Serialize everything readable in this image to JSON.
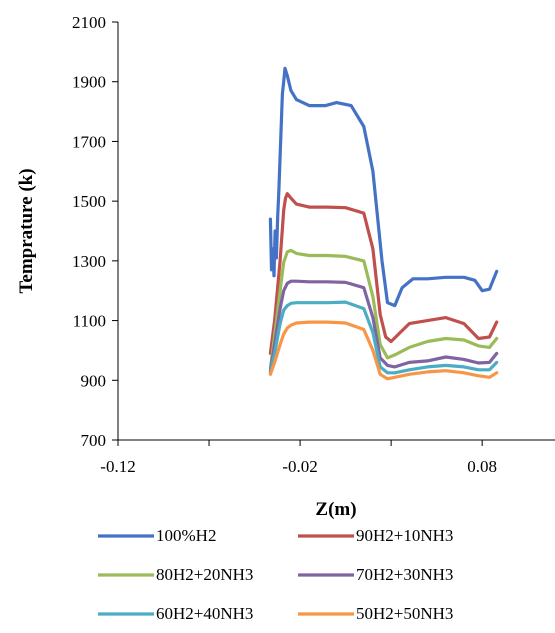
{
  "chart_data": {
    "type": "line",
    "title": "",
    "xlabel": "Z(m)",
    "ylabel": "Temprature (k)",
    "xlim": [
      -0.12,
      0.12
    ],
    "ylim": [
      700,
      2100
    ],
    "xticks": [
      -0.12,
      -0.02,
      0.08
    ],
    "xtick_labels": [
      "-0.12",
      "-0.02",
      "0.08"
    ],
    "yticks": [
      700,
      900,
      1100,
      1300,
      1500,
      1700,
      1900,
      2100
    ],
    "ytick_labels": [
      "700",
      "900",
      "1100",
      "1300",
      "1500",
      "1700",
      "1900",
      "2100"
    ],
    "grid": false,
    "legend_position": "bottom",
    "series": [
      {
        "name": "100%H2",
        "color": "#4472C4",
        "x": [
          -0.0363,
          -0.0357,
          -0.035,
          -0.0343,
          -0.0337,
          -0.033,
          -0.0323,
          -0.0317,
          -0.031,
          -0.0303,
          -0.0297,
          -0.029,
          -0.0283,
          -0.027,
          -0.025,
          -0.022,
          -0.015,
          -0.006,
          0.0,
          0.008,
          0.015,
          0.02,
          0.025,
          0.028,
          0.032,
          0.036,
          0.042,
          0.05,
          0.06,
          0.07,
          0.076,
          0.08,
          0.084,
          0.088
        ],
        "y": [
          1440,
          1270,
          1340,
          1250,
          1400,
          1310,
          1450,
          1530,
          1650,
          1760,
          1860,
          1900,
          1945,
          1920,
          1870,
          1840,
          1820,
          1820,
          1830,
          1820,
          1750,
          1600,
          1300,
          1160,
          1150,
          1210,
          1240,
          1240,
          1245,
          1245,
          1235,
          1200,
          1205,
          1265
        ]
      },
      {
        "name": "90H2+10NH3",
        "color": "#C0504D",
        "x": [
          -0.0363,
          -0.034,
          -0.031,
          -0.029,
          -0.028,
          -0.027,
          -0.025,
          -0.022,
          -0.015,
          -0.005,
          0.005,
          0.015,
          0.02,
          0.024,
          0.027,
          0.03,
          0.035,
          0.04,
          0.05,
          0.06,
          0.07,
          0.078,
          0.084,
          0.088
        ],
        "y": [
          990,
          1100,
          1300,
          1470,
          1510,
          1525,
          1510,
          1490,
          1480,
          1480,
          1478,
          1460,
          1340,
          1120,
          1045,
          1030,
          1060,
          1090,
          1100,
          1110,
          1090,
          1040,
          1045,
          1095
        ]
      },
      {
        "name": "80H2+20NH3",
        "color": "#9BBB59",
        "x": [
          -0.0363,
          -0.034,
          -0.031,
          -0.029,
          -0.027,
          -0.025,
          -0.022,
          -0.015,
          -0.005,
          0.005,
          0.015,
          0.02,
          0.024,
          0.028,
          0.032,
          0.04,
          0.05,
          0.06,
          0.07,
          0.078,
          0.084,
          0.088
        ],
        "y": [
          940,
          1050,
          1200,
          1295,
          1330,
          1335,
          1325,
          1318,
          1318,
          1315,
          1300,
          1180,
          1020,
          975,
          985,
          1010,
          1030,
          1040,
          1035,
          1015,
          1010,
          1040
        ]
      },
      {
        "name": "70H2+30NH3",
        "color": "#8064A2",
        "x": [
          -0.0363,
          -0.034,
          -0.031,
          -0.029,
          -0.027,
          -0.025,
          -0.022,
          -0.015,
          -0.005,
          0.005,
          0.015,
          0.02,
          0.024,
          0.028,
          0.032,
          0.04,
          0.05,
          0.06,
          0.07,
          0.078,
          0.084,
          0.088
        ],
        "y": [
          930,
          1020,
          1140,
          1200,
          1225,
          1232,
          1232,
          1230,
          1230,
          1228,
          1210,
          1110,
          975,
          950,
          945,
          960,
          965,
          978,
          970,
          958,
          960,
          990
        ]
      },
      {
        "name": "60H2+40NH3",
        "color": "#4BACC6",
        "x": [
          -0.0363,
          -0.034,
          -0.031,
          -0.029,
          -0.027,
          -0.025,
          -0.022,
          -0.015,
          -0.005,
          0.005,
          0.015,
          0.02,
          0.024,
          0.028,
          0.032,
          0.04,
          0.05,
          0.06,
          0.07,
          0.078,
          0.084,
          0.088
        ],
        "y": [
          925,
          990,
          1090,
          1135,
          1150,
          1158,
          1160,
          1160,
          1160,
          1162,
          1140,
          1060,
          945,
          925,
          925,
          935,
          945,
          950,
          945,
          935,
          935,
          960
        ]
      },
      {
        "name": "50H2+50NH3",
        "color": "#F79646",
        "x": [
          -0.0363,
          -0.034,
          -0.031,
          -0.029,
          -0.027,
          -0.025,
          -0.022,
          -0.015,
          -0.005,
          0.005,
          0.015,
          0.02,
          0.024,
          0.028,
          0.032,
          0.04,
          0.05,
          0.06,
          0.07,
          0.078,
          0.084,
          0.088
        ],
        "y": [
          920,
          960,
          1020,
          1055,
          1075,
          1085,
          1092,
          1095,
          1095,
          1092,
          1070,
          1000,
          920,
          905,
          910,
          920,
          928,
          932,
          925,
          915,
          910,
          925
        ]
      }
    ]
  }
}
